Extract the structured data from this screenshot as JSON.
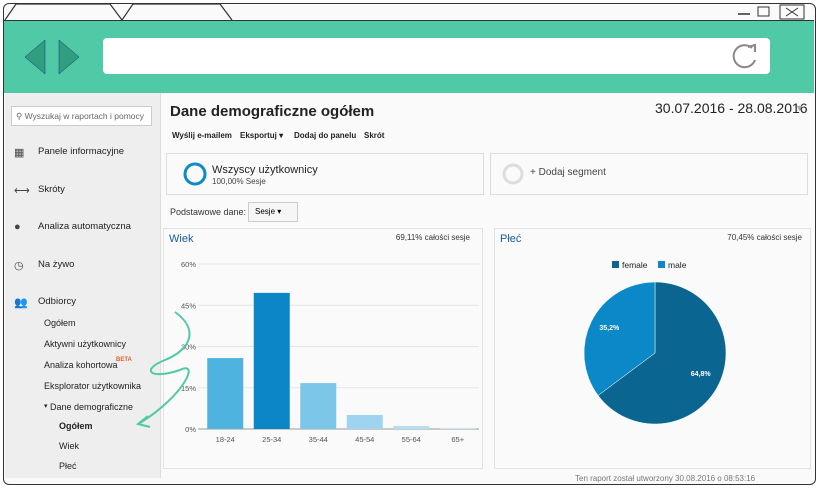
{
  "browser": {
    "address": ""
  },
  "sidebar": {
    "search": "Wyszukaj w raportach i pomocy",
    "items": [
      "Panele informacyjne",
      "Skróty",
      "Analiza automatyczna",
      "Na żywo",
      "Odbiorcy"
    ],
    "subitems": [
      "Ogółem",
      "Aktywni użytkownicy",
      "Analiza kohortowa",
      "Eksplorator użytkownika",
      "Dane demograficzne"
    ],
    "beta": "BETA",
    "subsubitems": [
      "Ogółem",
      "Wiek",
      "Płeć"
    ]
  },
  "header": {
    "title": "Dane demograficzne ogółem",
    "date_range": "30.07.2016 - 28.08.2016"
  },
  "toolbar": [
    "Wyślij e-mailem",
    "Eksportuj",
    "Dodaj do panelu",
    "Skrót"
  ],
  "segments": {
    "name": "Wszyscy użytkownicy",
    "detail": "100,00% Sesje",
    "add": "+ Dodaj segment"
  },
  "primary": {
    "label": "Podstawowe dane:",
    "value": "Sesje"
  },
  "footer": "Ten raport został utworzony 30.08.2016 o 08:53:16",
  "chart_data": [
    {
      "type": "bar",
      "title": "Wiek",
      "subtitle": "69,11% całości sesje",
      "categories": [
        "18-24",
        "25-34",
        "35-44",
        "45-54",
        "55-64",
        "65+"
      ],
      "values": [
        25.8,
        49.5,
        16.7,
        5.1,
        1.1,
        0.4
      ],
      "colors": [
        "#4fb3e0",
        "#0b86c6",
        "#7cc6ea",
        "#9ed4f0",
        "#b5def3",
        "#cde8f7"
      ],
      "ylim": [
        0,
        60
      ],
      "yticks": [
        {
          "value": 0,
          "label": "0%"
        },
        {
          "value": 15,
          "label": "15%"
        },
        {
          "value": 30,
          "label": "30%"
        },
        {
          "value": 45,
          "label": "45%"
        },
        {
          "value": 60,
          "label": "60%"
        }
      ],
      "grid": true
    },
    {
      "type": "pie",
      "title": "Płeć",
      "subtitle": "70,45% całości sesje",
      "categories": [
        "female",
        "male"
      ],
      "values": [
        64.8,
        35.2
      ],
      "value_labels": [
        "64,8%",
        "35,2%"
      ],
      "colors": [
        "#0a6590",
        "#0b88c7"
      ],
      "legend": "top"
    }
  ]
}
